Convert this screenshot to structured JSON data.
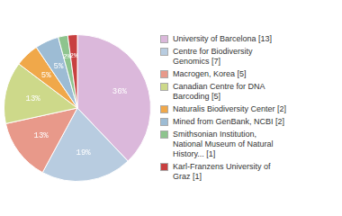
{
  "chart_data": {
    "type": "pie",
    "categories": [
      "University of Barcelona [13]",
      "Centre for Biodiversity\nGenomics [7]",
      "Macrogen, Korea [5]",
      "Canadian Centre for DNA\nBarcoding [5]",
      "Naturalis Biodiversity Center [2]",
      "Mined from GenBank, NCBI [2]",
      "Smithsonian Institution,\nNational Museum of Natural\nHistory... [1]",
      "Karl-Franzens University of\nGraz [1]"
    ],
    "values": [
      36,
      19,
      13,
      13,
      5,
      5,
      2,
      2
    ],
    "value_labels": [
      "36%",
      "19%",
      "13%",
      "13%",
      "5%",
      "5%",
      "2%",
      "2%"
    ],
    "colors": [
      "#dbb8db",
      "#b8cce0",
      "#e8998a",
      "#cdd98a",
      "#f0a84a",
      "#9dbcd4",
      "#8ec48e",
      "#c84040"
    ],
    "data_labels": true,
    "legend": "right"
  }
}
